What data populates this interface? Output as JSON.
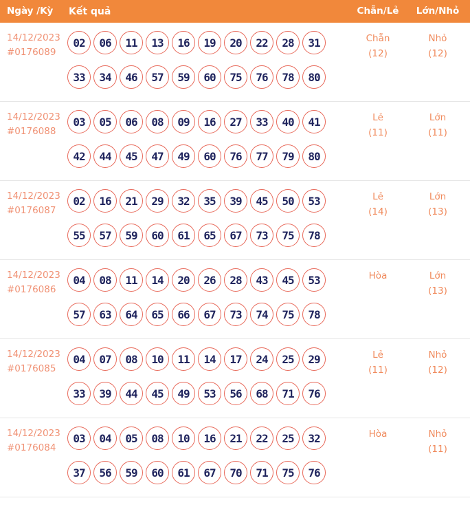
{
  "header": {
    "col_date": "Ngày /Kỳ",
    "col_result": "Kết quả",
    "col_chanle": "Chẵn/Lẻ",
    "col_lonnho": "Lớn/Nhỏ"
  },
  "colors": {
    "header_bg": "#f1883b",
    "header_text": "#ffffff",
    "date_text": "#f09174",
    "ball_border": "#e8695a",
    "ball_number": "#20255e",
    "value_text": "#f08a5c",
    "separator": "#e6e6e6"
  },
  "rows": [
    {
      "date": "14/12/2023",
      "period": "#0176089",
      "numbers_line1": [
        "02",
        "06",
        "11",
        "13",
        "16",
        "19",
        "20",
        "22",
        "28",
        "31"
      ],
      "numbers_line2": [
        "33",
        "34",
        "46",
        "57",
        "59",
        "60",
        "75",
        "76",
        "78",
        "80"
      ],
      "chanle": "Chẵn",
      "chanle_count": "(12)",
      "lonnho": "Nhỏ",
      "lonnho_count": "(12)"
    },
    {
      "date": "14/12/2023",
      "period": "#0176088",
      "numbers_line1": [
        "03",
        "05",
        "06",
        "08",
        "09",
        "16",
        "27",
        "33",
        "40",
        "41"
      ],
      "numbers_line2": [
        "42",
        "44",
        "45",
        "47",
        "49",
        "60",
        "76",
        "77",
        "79",
        "80"
      ],
      "chanle": "Lẻ",
      "chanle_count": "(11)",
      "lonnho": "Lớn",
      "lonnho_count": "(11)"
    },
    {
      "date": "14/12/2023",
      "period": "#0176087",
      "numbers_line1": [
        "02",
        "16",
        "21",
        "29",
        "32",
        "35",
        "39",
        "45",
        "50",
        "53"
      ],
      "numbers_line2": [
        "55",
        "57",
        "59",
        "60",
        "61",
        "65",
        "67",
        "73",
        "75",
        "78"
      ],
      "chanle": "Lẻ",
      "chanle_count": "(14)",
      "lonnho": "Lớn",
      "lonnho_count": "(13)"
    },
    {
      "date": "14/12/2023",
      "period": "#0176086",
      "numbers_line1": [
        "04",
        "08",
        "11",
        "14",
        "20",
        "26",
        "28",
        "43",
        "45",
        "53"
      ],
      "numbers_line2": [
        "57",
        "63",
        "64",
        "65",
        "66",
        "67",
        "73",
        "74",
        "75",
        "78"
      ],
      "chanle": "Hòa",
      "chanle_count": "",
      "lonnho": "Lớn",
      "lonnho_count": "(13)"
    },
    {
      "date": "14/12/2023",
      "period": "#0176085",
      "numbers_line1": [
        "04",
        "07",
        "08",
        "10",
        "11",
        "14",
        "17",
        "24",
        "25",
        "29"
      ],
      "numbers_line2": [
        "33",
        "39",
        "44",
        "45",
        "49",
        "53",
        "56",
        "68",
        "71",
        "76"
      ],
      "chanle": "Lẻ",
      "chanle_count": "(11)",
      "lonnho": "Nhỏ",
      "lonnho_count": "(12)"
    },
    {
      "date": "14/12/2023",
      "period": "#0176084",
      "numbers_line1": [
        "03",
        "04",
        "05",
        "08",
        "10",
        "16",
        "21",
        "22",
        "25",
        "32"
      ],
      "numbers_line2": [
        "37",
        "56",
        "59",
        "60",
        "61",
        "67",
        "70",
        "71",
        "75",
        "76"
      ],
      "chanle": "Hòa",
      "chanle_count": "",
      "lonnho": "Nhỏ",
      "lonnho_count": "(11)"
    }
  ]
}
